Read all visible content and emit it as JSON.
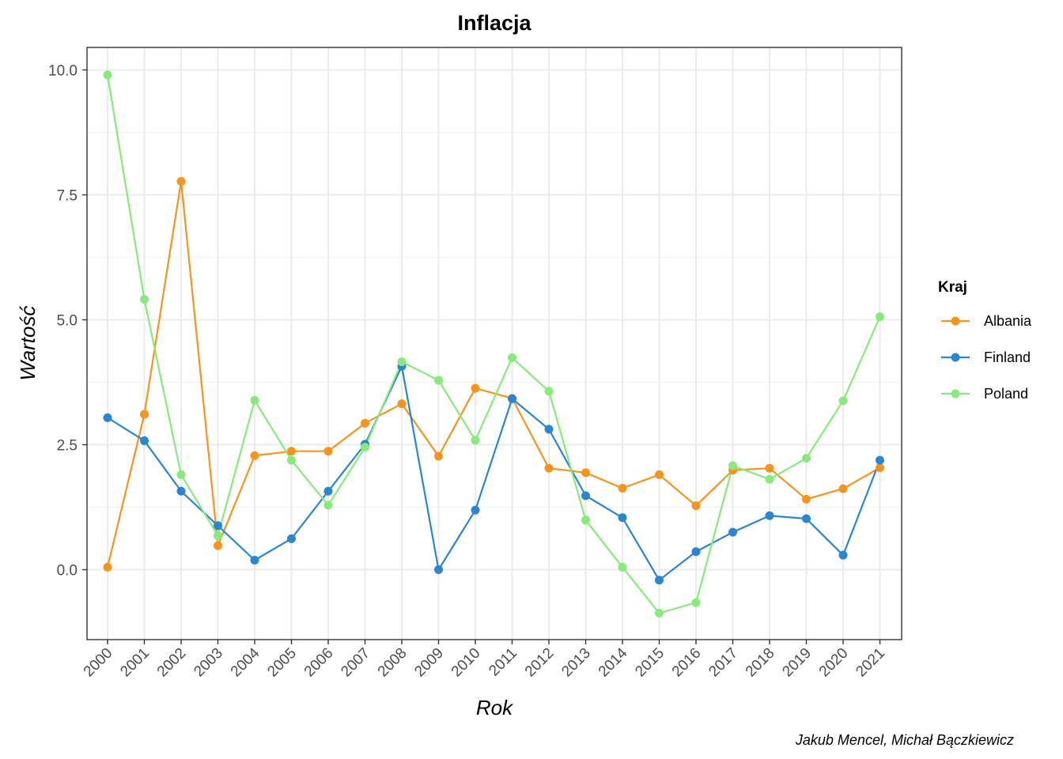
{
  "chart_data": {
    "type": "line",
    "title": "Inflacja",
    "xlabel": "Rok",
    "ylabel": "Wartość",
    "caption": "Jakub Mencel, Michał Bączkiewicz",
    "x": [
      "2000",
      "2001",
      "2002",
      "2003",
      "2004",
      "2005",
      "2006",
      "2007",
      "2008",
      "2009",
      "2010",
      "2011",
      "2012",
      "2013",
      "2014",
      "2015",
      "2016",
      "2017",
      "2018",
      "2019",
      "2020",
      "2021"
    ],
    "ylim": [
      -1.4,
      10.45
    ],
    "yticks": [
      0,
      2.5,
      5,
      7.5,
      10
    ],
    "ytick_labels": [
      "0.0",
      "2.5",
      "5.0",
      "7.5",
      "10.0"
    ],
    "grid": true,
    "legend": {
      "title": "Kraj",
      "position": "right"
    },
    "series": [
      {
        "name": "Albania",
        "color": "#f7941d",
        "values": [
          0.05,
          3.11,
          7.77,
          0.48,
          2.28,
          2.37,
          2.37,
          2.93,
          3.32,
          2.27,
          3.63,
          3.43,
          2.03,
          1.94,
          1.63,
          1.9,
          1.28,
          1.99,
          2.03,
          1.41,
          1.62,
          2.04
        ]
      },
      {
        "name": "Finland",
        "color": "#2b86d2",
        "values": [
          3.04,
          2.58,
          1.57,
          0.88,
          0.19,
          0.62,
          1.57,
          2.51,
          4.07,
          0.0,
          1.19,
          3.42,
          2.81,
          1.48,
          1.04,
          -0.21,
          0.36,
          0.75,
          1.08,
          1.02,
          0.29,
          2.19
        ]
      },
      {
        "name": "Poland",
        "color": "#87ea7b",
        "values": [
          9.9,
          5.41,
          1.9,
          0.68,
          3.39,
          2.19,
          1.29,
          2.45,
          4.16,
          3.79,
          2.59,
          4.24,
          3.57,
          0.99,
          0.05,
          -0.87,
          -0.66,
          2.08,
          1.81,
          2.23,
          3.38,
          5.06
        ]
      }
    ]
  }
}
